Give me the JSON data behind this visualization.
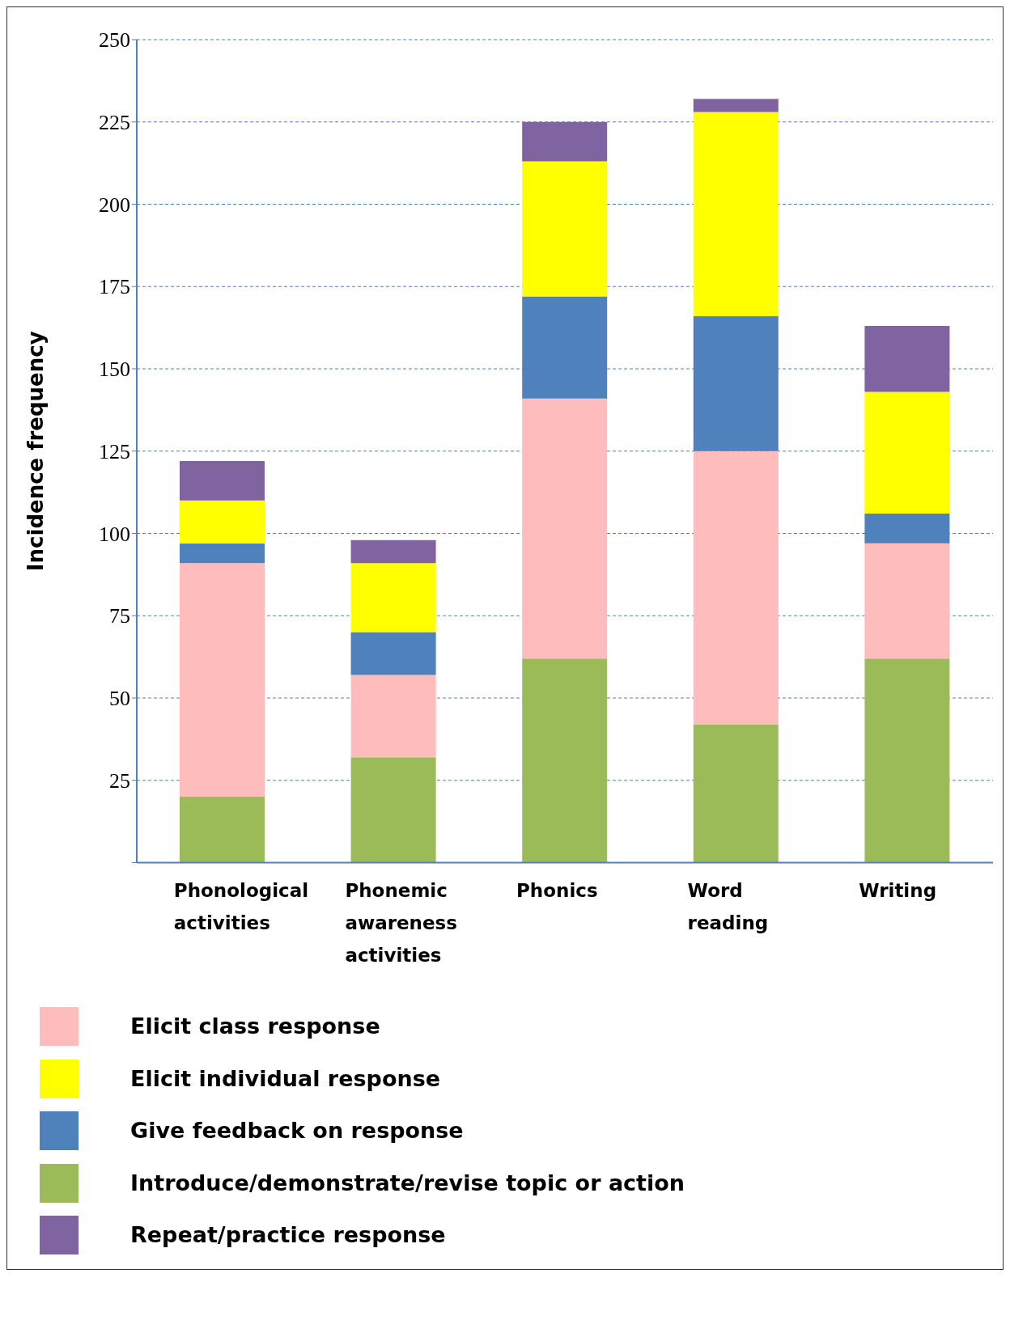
{
  "chart_data": {
    "type": "bar",
    "stacked": true,
    "ylabel": "Incidence frequency",
    "categories": [
      "Phonological activities",
      "Phonemic awareness activities",
      "Phonics",
      "Word reading",
      "Writing"
    ],
    "series": [
      {
        "name": "Introduce/demonstrate/revise topic or action",
        "color": "#9bbb59",
        "values": [
          20,
          32,
          62,
          42,
          62
        ]
      },
      {
        "name": "Elicit class response",
        "color": "#ffbcbc",
        "values": [
          71,
          25,
          79,
          83,
          35
        ]
      },
      {
        "name": "Give feedback on response",
        "color": "#4f81bd",
        "values": [
          6,
          13,
          31,
          41,
          9
        ]
      },
      {
        "name": "Elicit individual response",
        "color": "#ffff00",
        "values": [
          13,
          21,
          41,
          62,
          37
        ]
      },
      {
        "name": "Repeat/practice response",
        "color": "#8064a2",
        "values": [
          12,
          7,
          12,
          4,
          20
        ]
      }
    ],
    "ylim": [
      0,
      250
    ],
    "yticks": [
      {
        "value": 0,
        "label": null
      },
      25,
      50,
      75,
      100,
      125,
      150,
      175,
      200,
      225,
      250
    ],
    "grid": "y",
    "legend": "bottom"
  }
}
